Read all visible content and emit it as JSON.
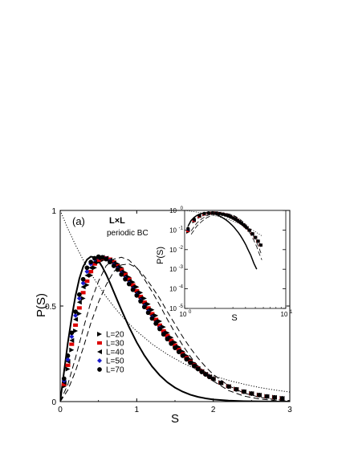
{
  "chart_data": {
    "type": "scatter",
    "main": {
      "xlabel": "S",
      "ylabel": "P(S)",
      "xlim": [
        0,
        3
      ],
      "ylim": [
        0,
        1
      ],
      "x_ticks": [
        0,
        1,
        2,
        3
      ],
      "y_ticks": [
        0,
        0.5,
        1
      ],
      "x_tick_labels": [
        "0",
        "1",
        "2",
        "3"
      ],
      "y_tick_labels": [
        "0",
        "0.5",
        "1"
      ],
      "panel_label": "(a)",
      "lattice_label": "L×L",
      "bc_label": "periodic BC",
      "legend_position": "lower-left",
      "series": [
        {
          "name": "L=20",
          "marker": "triangle-right",
          "color": "#000000",
          "x": [
            0.05,
            0.1,
            0.15,
            0.2,
            0.25,
            0.3,
            0.35,
            0.4,
            0.45,
            0.5,
            0.55,
            0.6,
            0.65,
            0.7,
            0.75,
            0.8,
            0.85,
            0.9,
            0.95,
            1.0,
            1.05,
            1.1,
            1.15,
            1.2,
            1.25,
            1.3,
            1.35,
            1.4,
            1.45,
            1.5,
            1.55,
            1.6,
            1.65,
            1.7,
            1.75,
            1.8,
            1.85,
            1.9,
            1.95,
            2.0,
            2.1,
            2.2,
            2.3,
            2.4,
            2.5,
            2.6,
            2.7,
            2.8,
            2.9
          ],
          "y": [
            0.08,
            0.17,
            0.27,
            0.37,
            0.46,
            0.54,
            0.61,
            0.66,
            0.7,
            0.73,
            0.74,
            0.75,
            0.745,
            0.735,
            0.72,
            0.7,
            0.675,
            0.65,
            0.625,
            0.6,
            0.57,
            0.54,
            0.51,
            0.48,
            0.45,
            0.42,
            0.39,
            0.36,
            0.335,
            0.31,
            0.285,
            0.262,
            0.24,
            0.22,
            0.2,
            0.182,
            0.165,
            0.15,
            0.136,
            0.123,
            0.1,
            0.082,
            0.066,
            0.053,
            0.043,
            0.035,
            0.028,
            0.023,
            0.018
          ]
        },
        {
          "name": "L=30",
          "marker": "square",
          "color": "#dd0000",
          "x": [
            0.05,
            0.1,
            0.15,
            0.2,
            0.25,
            0.3,
            0.35,
            0.4,
            0.45,
            0.5,
            0.55,
            0.6,
            0.65,
            0.7,
            0.75,
            0.8,
            0.85,
            0.9,
            0.95,
            1.0,
            1.05,
            1.1,
            1.15,
            1.2,
            1.25,
            1.3,
            1.35,
            1.4,
            1.45,
            1.5,
            1.55,
            1.6,
            1.65,
            1.7,
            1.75,
            1.8,
            1.85,
            1.9,
            1.95,
            2.0,
            2.1,
            2.2,
            2.3,
            2.4,
            2.5,
            2.6,
            2.7,
            2.8,
            2.9
          ],
          "y": [
            0.09,
            0.19,
            0.3,
            0.4,
            0.49,
            0.57,
            0.63,
            0.68,
            0.72,
            0.74,
            0.75,
            0.752,
            0.745,
            0.73,
            0.71,
            0.69,
            0.665,
            0.64,
            0.61,
            0.58,
            0.55,
            0.52,
            0.49,
            0.46,
            0.43,
            0.4,
            0.37,
            0.345,
            0.32,
            0.295,
            0.272,
            0.25,
            0.23,
            0.21,
            0.192,
            0.175,
            0.16,
            0.145,
            0.132,
            0.12,
            0.098,
            0.08,
            0.065,
            0.052,
            0.042,
            0.034,
            0.027,
            0.022,
            0.017
          ]
        },
        {
          "name": "L=40",
          "marker": "triangle-left",
          "color": "#000000",
          "x": [
            0.05,
            0.1,
            0.15,
            0.2,
            0.25,
            0.3,
            0.35,
            0.4,
            0.45,
            0.5,
            0.55,
            0.6,
            0.65,
            0.7,
            0.75,
            0.8,
            0.85,
            0.9,
            0.95,
            1.0,
            1.05,
            1.1,
            1.15,
            1.2,
            1.25,
            1.3,
            1.35,
            1.4,
            1.45,
            1.5,
            1.55,
            1.6,
            1.65,
            1.7,
            1.75,
            1.8,
            1.85,
            1.9,
            1.95,
            2.0,
            2.1,
            2.2,
            2.3,
            2.4,
            2.5,
            2.6,
            2.7,
            2.8,
            2.9
          ],
          "y": [
            0.1,
            0.21,
            0.32,
            0.43,
            0.52,
            0.6,
            0.66,
            0.7,
            0.73,
            0.75,
            0.755,
            0.75,
            0.74,
            0.725,
            0.705,
            0.68,
            0.655,
            0.63,
            0.6,
            0.57,
            0.54,
            0.51,
            0.48,
            0.45,
            0.42,
            0.39,
            0.36,
            0.335,
            0.31,
            0.287,
            0.265,
            0.244,
            0.224,
            0.205,
            0.188,
            0.172,
            0.157,
            0.143,
            0.13,
            0.118,
            0.097,
            0.079,
            0.064,
            0.052,
            0.042,
            0.034,
            0.027,
            0.022,
            0.017
          ]
        },
        {
          "name": "L=50",
          "marker": "diamond",
          "color": "#1a1acc",
          "x": [
            0.05,
            0.1,
            0.15,
            0.2,
            0.25,
            0.3,
            0.35,
            0.4,
            0.45,
            0.5,
            0.55,
            0.6,
            0.65,
            0.7,
            0.75,
            0.8,
            0.85,
            0.9,
            0.95,
            1.0,
            1.05,
            1.1,
            1.15,
            1.2,
            1.25,
            1.3,
            1.35,
            1.4,
            1.45,
            1.5,
            1.55,
            1.6,
            1.65,
            1.7,
            1.75,
            1.8,
            1.85,
            1.9,
            1.95,
            2.0,
            2.1,
            2.2,
            2.3,
            2.4,
            2.5,
            2.6,
            2.7,
            2.8,
            2.9
          ],
          "y": [
            0.11,
            0.22,
            0.34,
            0.45,
            0.54,
            0.62,
            0.68,
            0.72,
            0.745,
            0.755,
            0.755,
            0.748,
            0.735,
            0.715,
            0.695,
            0.67,
            0.645,
            0.62,
            0.59,
            0.56,
            0.53,
            0.5,
            0.47,
            0.44,
            0.41,
            0.385,
            0.355,
            0.33,
            0.305,
            0.283,
            0.262,
            0.241,
            0.222,
            0.204,
            0.187,
            0.171,
            0.156,
            0.142,
            0.13,
            0.118,
            0.097,
            0.079,
            0.064,
            0.052,
            0.042,
            0.034,
            0.027,
            0.022,
            0.017
          ]
        },
        {
          "name": "L=70",
          "marker": "circle",
          "color": "#000000",
          "x": [
            0.05,
            0.1,
            0.15,
            0.2,
            0.25,
            0.3,
            0.35,
            0.4,
            0.45,
            0.5,
            0.55,
            0.6,
            0.65,
            0.7,
            0.75,
            0.8,
            0.85,
            0.9,
            0.95,
            1.0,
            1.05,
            1.1,
            1.15,
            1.2,
            1.25,
            1.3,
            1.35,
            1.4,
            1.45,
            1.5,
            1.55,
            1.6,
            1.65,
            1.7,
            1.75,
            1.8,
            1.85,
            1.9,
            1.95,
            2.0,
            2.1,
            2.2,
            2.3,
            2.4,
            2.5,
            2.6,
            2.7,
            2.8,
            2.9
          ],
          "y": [
            0.12,
            0.24,
            0.36,
            0.47,
            0.56,
            0.64,
            0.7,
            0.73,
            0.75,
            0.758,
            0.755,
            0.745,
            0.73,
            0.71,
            0.69,
            0.665,
            0.64,
            0.615,
            0.585,
            0.555,
            0.525,
            0.495,
            0.465,
            0.435,
            0.408,
            0.38,
            0.352,
            0.327,
            0.303,
            0.281,
            0.26,
            0.24,
            0.221,
            0.203,
            0.186,
            0.17,
            0.155,
            0.142,
            0.129,
            0.118,
            0.097,
            0.079,
            0.064,
            0.052,
            0.042,
            0.034,
            0.027,
            0.022,
            0.017
          ]
        }
      ],
      "reference_curves": [
        {
          "style": "solid",
          "x": [
            0,
            0.05,
            0.1,
            0.15,
            0.2,
            0.25,
            0.3,
            0.35,
            0.4,
            0.45,
            0.5,
            0.55,
            0.6,
            0.65,
            0.7,
            0.75,
            0.8,
            0.9,
            1.0,
            1.1,
            1.2,
            1.3,
            1.4,
            1.5,
            1.6,
            1.7,
            1.8,
            1.9,
            2.0,
            2.2,
            2.4,
            2.6,
            2.8,
            3.0
          ],
          "y": [
            0,
            0.157,
            0.307,
            0.44,
            0.554,
            0.643,
            0.706,
            0.743,
            0.758,
            0.755,
            0.736,
            0.705,
            0.666,
            0.621,
            0.574,
            0.526,
            0.479,
            0.39,
            0.31,
            0.241,
            0.184,
            0.138,
            0.101,
            0.073,
            0.052,
            0.036,
            0.025,
            0.017,
            0.011,
            0.005,
            0.002,
            0.001,
            0.0,
            0.0
          ]
        },
        {
          "style": "dashed",
          "x": [
            0,
            0.1,
            0.2,
            0.3,
            0.4,
            0.5,
            0.6,
            0.7,
            0.8,
            0.9,
            1.0,
            1.1,
            1.2,
            1.3,
            1.4,
            1.5,
            1.6,
            1.7,
            1.8,
            1.9,
            2.0,
            2.2,
            2.4,
            2.6,
            2.8,
            3.0
          ],
          "y": [
            0,
            0.09,
            0.23,
            0.38,
            0.52,
            0.63,
            0.71,
            0.745,
            0.755,
            0.74,
            0.7,
            0.64,
            0.575,
            0.505,
            0.43,
            0.36,
            0.295,
            0.236,
            0.185,
            0.142,
            0.107,
            0.058,
            0.029,
            0.014,
            0.006,
            0.003
          ]
        },
        {
          "style": "dashed",
          "x": [
            0,
            0.1,
            0.2,
            0.3,
            0.4,
            0.5,
            0.6,
            0.7,
            0.8,
            0.9,
            1.0,
            1.1,
            1.2,
            1.3,
            1.4,
            1.5,
            1.6,
            1.7,
            1.8,
            1.9,
            2.0,
            2.2,
            2.4,
            2.6,
            2.8,
            3.0
          ],
          "y": [
            0,
            0.06,
            0.16,
            0.28,
            0.41,
            0.52,
            0.61,
            0.68,
            0.715,
            0.72,
            0.7,
            0.655,
            0.6,
            0.54,
            0.47,
            0.405,
            0.34,
            0.28,
            0.228,
            0.182,
            0.142,
            0.083,
            0.045,
            0.023,
            0.011,
            0.005
          ]
        },
        {
          "style": "dotted",
          "x": [
            0,
            0.1,
            0.2,
            0.3,
            0.4,
            0.5,
            0.6,
            0.7,
            0.8,
            0.9,
            1.0,
            1.2,
            1.4,
            1.6,
            1.8,
            2.0,
            2.2,
            2.4,
            2.6,
            2.8,
            3.0
          ],
          "y": [
            1.0,
            0.905,
            0.819,
            0.741,
            0.67,
            0.607,
            0.549,
            0.497,
            0.449,
            0.407,
            0.368,
            0.301,
            0.247,
            0.202,
            0.165,
            0.135,
            0.111,
            0.091,
            0.074,
            0.061,
            0.05
          ]
        }
      ]
    },
    "inset": {
      "xlabel": "S",
      "ylabel": "P(S)",
      "xscale": "log",
      "yscale": "log",
      "xlim": [
        1,
        10
      ],
      "ylim": [
        1e-05,
        1
      ],
      "x_ticks": [
        1,
        10
      ],
      "y_ticks": [
        1e-05,
        0.0001,
        0.001,
        0.01,
        0.1,
        1
      ],
      "x_tick_labels": [
        [
          "10",
          "0"
        ],
        [
          "10",
          "1"
        ]
      ],
      "y_tick_labels": [
        [
          "10",
          "-5"
        ],
        [
          "10",
          "-4"
        ],
        [
          "10",
          "-3"
        ],
        [
          "10",
          "-2"
        ],
        [
          "10",
          "-1"
        ],
        [
          "10",
          "0"
        ]
      ]
    }
  }
}
